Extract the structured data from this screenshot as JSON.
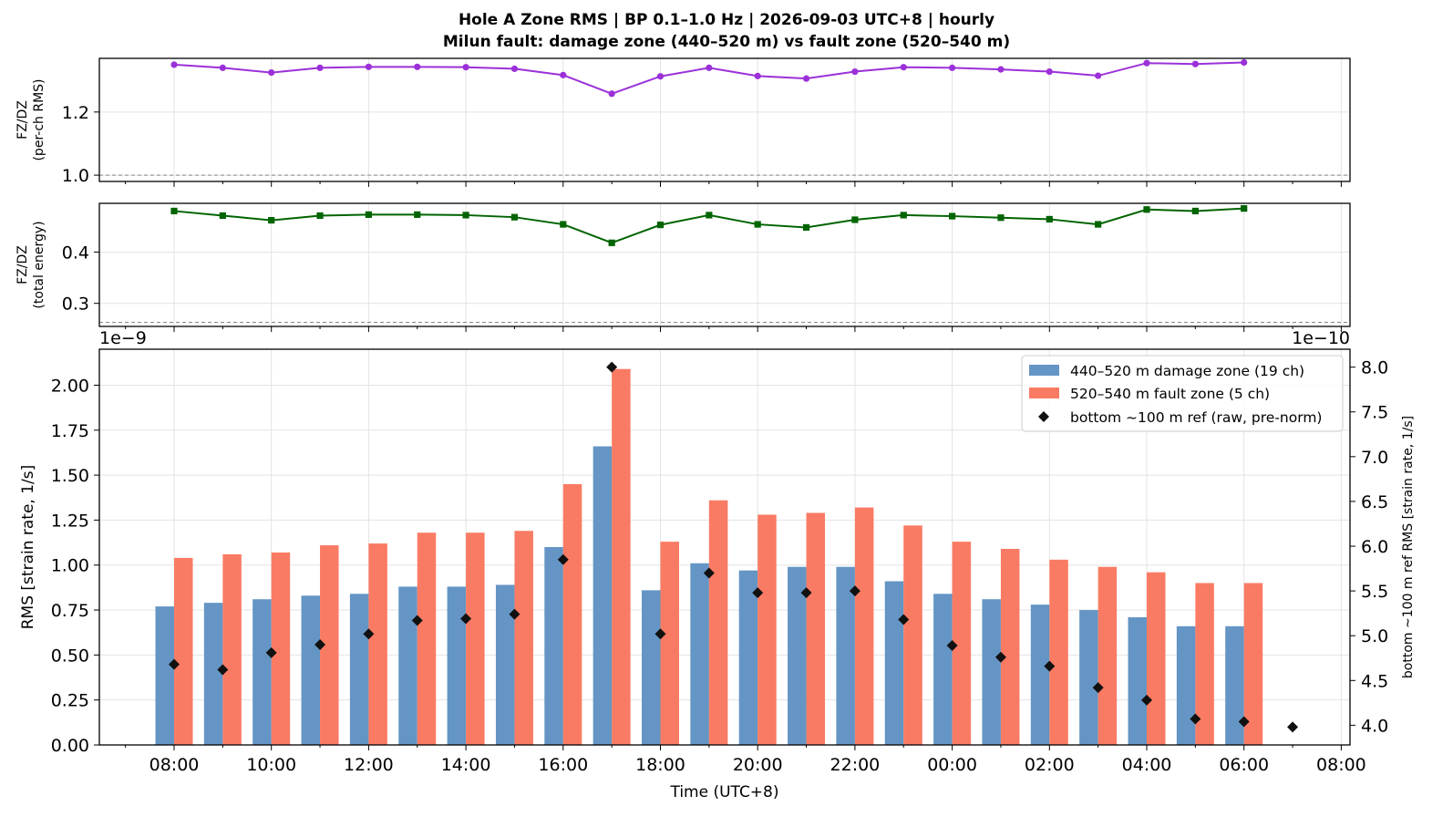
{
  "title_line1": "Hole A Zone RMS  |  BP 0.1–1.0 Hz  |  2026-09-03 UTC+8  |  hourly",
  "title_line2": "Milun fault: damage zone (440–520 m) vs fault zone (520–540 m)",
  "chart_data": [
    {
      "type": "line",
      "ylabel": [
        "FZ/DZ",
        "(per-ch RMS)"
      ],
      "ylim": [
        0.98,
        1.37
      ],
      "yticks": [
        1.0,
        1.2
      ],
      "ytick_labels": [
        "1.0",
        "1.2"
      ],
      "reference_line": 1.0,
      "color": "#9b30d9",
      "marker": "circle",
      "x": [
        "08:00",
        "09:00",
        "10:00",
        "11:00",
        "12:00",
        "13:00",
        "14:00",
        "15:00",
        "16:00",
        "17:00",
        "18:00",
        "19:00",
        "20:00",
        "21:00",
        "22:00",
        "23:00",
        "00:00",
        "01:00",
        "02:00",
        "03:00",
        "04:00",
        "05:00",
        "06:00"
      ],
      "values": [
        1.35,
        1.34,
        1.325,
        1.34,
        1.343,
        1.343,
        1.342,
        1.337,
        1.317,
        1.258,
        1.313,
        1.34,
        1.314,
        1.306,
        1.328,
        1.342,
        1.34,
        1.335,
        1.328,
        1.315,
        1.355,
        1.352,
        1.357
      ],
      "grid": true
    },
    {
      "type": "line",
      "ylabel": [
        "FZ/DZ",
        "(total energy)"
      ],
      "ylim": [
        0.255,
        0.495
      ],
      "yticks": [
        0.3,
        0.4
      ],
      "ytick_labels": [
        "0.3",
        "0.4"
      ],
      "reference_line": 0.263,
      "color": "#006400",
      "marker": "square",
      "x": [
        "08:00",
        "09:00",
        "10:00",
        "11:00",
        "12:00",
        "13:00",
        "14:00",
        "15:00",
        "16:00",
        "17:00",
        "18:00",
        "19:00",
        "20:00",
        "21:00",
        "22:00",
        "23:00",
        "00:00",
        "01:00",
        "02:00",
        "03:00",
        "04:00",
        "05:00",
        "06:00"
      ],
      "values": [
        0.48,
        0.471,
        0.462,
        0.471,
        0.473,
        0.473,
        0.472,
        0.468,
        0.454,
        0.418,
        0.453,
        0.472,
        0.454,
        0.448,
        0.463,
        0.472,
        0.47,
        0.467,
        0.464,
        0.454,
        0.483,
        0.48,
        0.485
      ],
      "grid": true
    },
    {
      "type": "bar",
      "xlabel": "Time (UTC+8)",
      "ylabel": "RMS  [strain rate, 1/s]",
      "ylabel_right": "bottom ~100 m ref RMS  [strain rate, 1/s]",
      "offset_left": "1e−9",
      "offset_right": "1e−10",
      "ylim": [
        0,
        2.2
      ],
      "yticks": [
        0,
        0.25,
        0.5,
        0.75,
        1.0,
        1.25,
        1.5,
        1.75,
        2.0
      ],
      "ytick_labels": [
        "0.00",
        "0.25",
        "0.50",
        "0.75",
        "1.00",
        "1.25",
        "1.50",
        "1.75",
        "2.00"
      ],
      "ylim_right": [
        3.78,
        8.2
      ],
      "yticks_right": [
        4.0,
        4.5,
        5.0,
        5.5,
        6.0,
        6.5,
        7.0,
        7.5,
        8.0
      ],
      "ytick_labels_right": [
        "4.0",
        "4.5",
        "5.0",
        "5.5",
        "6.0",
        "6.5",
        "7.0",
        "7.5",
        "8.0"
      ],
      "x_tick_labels": [
        "08:00",
        "10:00",
        "12:00",
        "14:00",
        "16:00",
        "18:00",
        "20:00",
        "22:00",
        "00:00",
        "02:00",
        "04:00",
        "06:00",
        "08:00"
      ],
      "categories": [
        "08:00",
        "09:00",
        "10:00",
        "11:00",
        "12:00",
        "13:00",
        "14:00",
        "15:00",
        "16:00",
        "17:00",
        "18:00",
        "19:00",
        "20:00",
        "21:00",
        "22:00",
        "23:00",
        "00:00",
        "01:00",
        "02:00",
        "03:00",
        "04:00",
        "05:00",
        "06:00",
        "07:00"
      ],
      "series": [
        {
          "name": "440–520 m  damage zone (19 ch)",
          "color": "#6495c5",
          "axis": "left",
          "values": [
            0.77,
            0.79,
            0.81,
            0.83,
            0.84,
            0.88,
            0.88,
            0.89,
            1.1,
            1.66,
            0.86,
            1.01,
            0.97,
            0.99,
            0.99,
            0.91,
            0.84,
            0.81,
            0.78,
            0.75,
            0.71,
            0.66,
            0.66,
            null
          ]
        },
        {
          "name": "520–540 m  fault zone (5 ch)",
          "color": "#fa7b64",
          "axis": "left",
          "values": [
            1.04,
            1.06,
            1.07,
            1.11,
            1.12,
            1.18,
            1.18,
            1.19,
            1.45,
            2.09,
            1.13,
            1.36,
            1.28,
            1.29,
            1.32,
            1.22,
            1.13,
            1.09,
            1.03,
            0.99,
            0.96,
            0.9,
            0.9,
            null
          ]
        },
        {
          "name": "bottom ~100 m ref (raw, pre-norm)",
          "color": "#111111",
          "axis": "right",
          "marker": "diamond",
          "values": [
            4.68,
            4.62,
            4.81,
            4.9,
            5.02,
            5.17,
            5.19,
            5.24,
            5.85,
            8.0,
            5.02,
            5.7,
            5.48,
            5.48,
            5.5,
            5.18,
            4.89,
            4.76,
            4.66,
            4.42,
            4.28,
            4.07,
            4.04,
            3.98
          ]
        }
      ],
      "legend_position": "top-right",
      "grid": true
    }
  ]
}
